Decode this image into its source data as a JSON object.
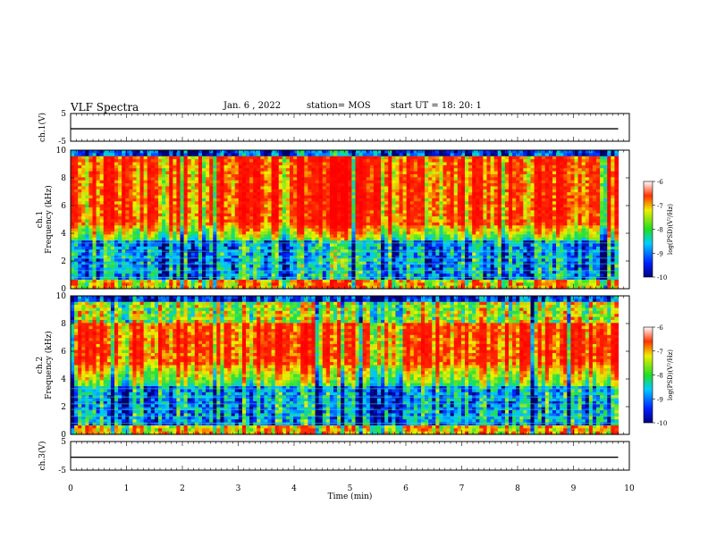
{
  "header": {
    "title": "VLF Spectra",
    "date": "Jan. 6 , 2022",
    "station": "station= MOS",
    "start": "start UT =  18: 20: 1"
  },
  "chart_data": [
    {
      "type": "line",
      "ylabel": "ch.1(V)",
      "ylim": [
        -5,
        5
      ],
      "yticks": [
        "5",
        "-5"
      ],
      "xlim": [
        0,
        10
      ],
      "x": [
        0,
        9.8
      ],
      "values": [
        -0.5,
        -0.5
      ]
    },
    {
      "type": "heatmap",
      "ylabel": "ch.1\nFrequency (kHz)",
      "ylim": [
        0,
        10
      ],
      "yticks": [
        "0",
        "2",
        "4",
        "6",
        "8",
        "10"
      ],
      "xlim": [
        0,
        10
      ],
      "data_end_min": 9.8,
      "colorbar": {
        "label": "log(PSD)(V²/Hz)",
        "range": [
          -10,
          -6
        ],
        "ticks": [
          "-6",
          "-7",
          "-8",
          "-9",
          "-10"
        ]
      },
      "intense_band_khz": [
        4.5,
        9.5
      ]
    },
    {
      "type": "heatmap",
      "ylabel": "ch.2\nFrequency (kHz)",
      "ylim": [
        0,
        10
      ],
      "yticks": [
        "0",
        "2",
        "4",
        "6",
        "8",
        "10"
      ],
      "xlim": [
        0,
        10
      ],
      "data_end_min": 9.8,
      "colorbar": {
        "label": "log(PSD)(V²/Hz)",
        "range": [
          -10,
          -6
        ],
        "ticks": [
          "-6",
          "-7",
          "-8",
          "-9",
          "-10"
        ]
      },
      "intense_band_khz": [
        5,
        8
      ]
    },
    {
      "type": "line",
      "ylabel": "ch.3(V)",
      "ylim": [
        -5,
        5
      ],
      "yticks": [
        "5",
        "-5"
      ],
      "xlim": [
        0,
        10
      ],
      "x": [
        0,
        9.8
      ],
      "values": [
        -0.5,
        -0.5
      ]
    }
  ],
  "xaxis": {
    "label": "Time  (min)",
    "ticks": [
      "0",
      "1",
      "2",
      "3",
      "4",
      "5",
      "6",
      "7",
      "8",
      "9",
      "10"
    ]
  },
  "colors": {
    "red": "#ff2200",
    "yellow": "#ffee00",
    "green": "#22dd22",
    "cyan": "#00ddff",
    "blue": "#0033ff",
    "navy": "#000066"
  }
}
